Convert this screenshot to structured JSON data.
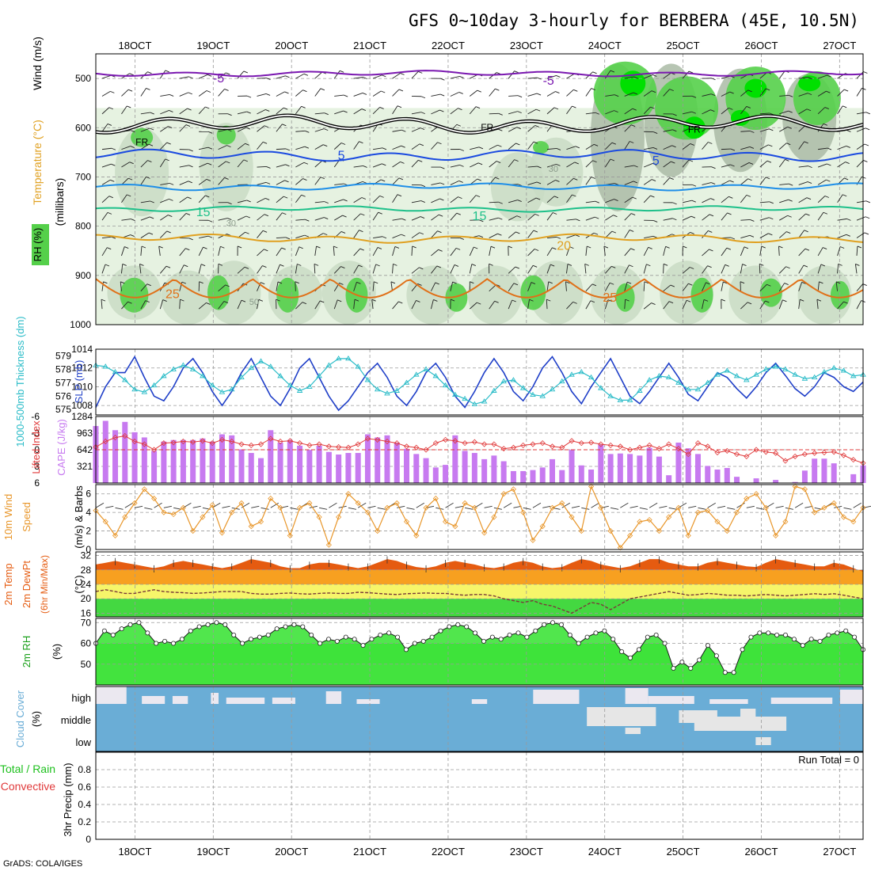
{
  "title": "GFS 0~10day 3-hourly for BERBERA (45E, 10.5N)",
  "credit": "GrADS: COLA/IGES",
  "colors": {
    "rh_light": "#e6f2e1",
    "rh_mid": "#c9dcc4",
    "rh_dark": "#aabba6",
    "rh_green": "#55d04a",
    "rh_bright": "#00e000",
    "cape_bar": "#c77af0",
    "lifted_index": "#e0393a",
    "slp": "#1f3fc8",
    "thickness": "#2bbcc8",
    "wind_speed": "#e8962a",
    "temp_fill": "#e55b10",
    "temp_band": "#f7a020",
    "dewpoint_band": "#f6f56a",
    "dew_green": "#44d841",
    "rh2m_fill": "#3ee33a",
    "cloud": "#6aadd6",
    "cloud_gap": "#ebe8f0",
    "iso_m5": "#7a18b0",
    "iso_5": "#1a4ae0",
    "iso_10": "#1e8ee8",
    "iso_15": "#1ec08a",
    "iso_20": "#e0a020",
    "iso_25": "#e07018"
  },
  "chart_data": [
    {
      "panel": "upper-air",
      "type": "heatmap",
      "ylabel_wind": "Wind (m/s)",
      "ylabel_temp": "Temperature (°C)",
      "ylabel_rh": "RH (%)",
      "ylabel_units": "(millibars)",
      "x_labels": [
        "18OCT",
        "19OCT",
        "20OCT",
        "21OCT",
        "22OCT",
        "23OCT",
        "24OCT",
        "25OCT",
        "26OCT",
        "27OCT"
      ],
      "x_day_start": 17.5,
      "x_day_end": 27.3,
      "y_ticks": [
        500,
        600,
        700,
        800,
        900,
        1000
      ],
      "ylim": [
        450,
        1000
      ],
      "isotherm_labels": [
        "-5",
        "5",
        "15",
        "20",
        "25",
        "FR"
      ],
      "rh_labels": [
        "30",
        "50"
      ],
      "isotherms": [
        {
          "name": "-5",
          "base": 490,
          "amp": 4,
          "color_key": "iso_m5"
        },
        {
          "name": "FR",
          "base": 593,
          "amp": 12,
          "color_key": "iso_fr"
        },
        {
          "name": "5",
          "base": 656,
          "amp": 8,
          "color_key": "iso_5"
        },
        {
          "name": "10",
          "base": 720,
          "amp": 5,
          "color_key": "iso_10"
        },
        {
          "name": "15",
          "base": 765,
          "amp": 4,
          "color_key": "iso_15"
        },
        {
          "name": "20",
          "base": 825,
          "amp": 6,
          "color_key": "iso_20"
        },
        {
          "name": "25",
          "base": 925,
          "amp": 20,
          "color_key": "iso_25"
        }
      ]
    },
    {
      "panel": "slp-thickness",
      "type": "line",
      "ylabel_slp": "SLP (mb)",
      "ylabel_thick": "1000-500mb Thickness (dm)",
      "slp_ticks": [
        1008,
        1010,
        1012,
        1014
      ],
      "thick_ticks": [
        575,
        576,
        577,
        578,
        579
      ],
      "slp_ylim": [
        1007,
        1014
      ],
      "thick_ylim": [
        574.6,
        579.5
      ],
      "series": [
        {
          "name": "SLP",
          "values": [
            1007.8,
            1010,
            1011.5,
            1011.5,
            1013.2,
            1011,
            1009,
            1008.5,
            1010,
            1012,
            1013,
            1011.5,
            1009.5,
            1008,
            1009.5,
            1011.5,
            1013,
            1011,
            1009,
            1008,
            1009.8,
            1012,
            1013,
            1011,
            1009,
            1007.5,
            1008.5,
            1010,
            1011.5,
            1012.5,
            1011,
            1009,
            1008,
            1009.5,
            1011.5,
            1012.5,
            1011,
            1009,
            1007.8,
            1009.5,
            1011.5,
            1013,
            1011.5,
            1009.5,
            1008.5,
            1010,
            1012,
            1013.2,
            1011.5,
            1009.5,
            1008.2,
            1010,
            1011.5,
            1013,
            1011,
            1009,
            1008.2,
            1009.5,
            1011,
            1012.5,
            1011,
            1009.2,
            1008.5,
            1010,
            1011.5,
            1011,
            1009.8,
            1008.8,
            1010,
            1011.5,
            1012.5,
            1011.2,
            1009.8,
            1009,
            1010,
            1011.5,
            1011,
            1010,
            1009.5,
            1010.5
          ]
        },
        {
          "name": "Thickness",
          "values": [
            578.3,
            578.2,
            577.8,
            577.2,
            576.5,
            576.3,
            576.8,
            577.5,
            578,
            578.3,
            578,
            577.5,
            576.8,
            576.3,
            576.5,
            577.4,
            578.1,
            578.6,
            578.2,
            577.5,
            576.8,
            576.4,
            576.7,
            577.5,
            578.3,
            578.8,
            578.8,
            578.2,
            577.2,
            576.5,
            576.2,
            576.4,
            577,
            577.6,
            578,
            577.5,
            576.8,
            576.1,
            575.8,
            575.4,
            575.6,
            576.4,
            577.1,
            577.2,
            576.6,
            576.1,
            576,
            576.5,
            577.1,
            577.6,
            577.8,
            577.4,
            576.6,
            576,
            575.7,
            575.7,
            576.4,
            577.2,
            577.5,
            577.4,
            577,
            576.5,
            576.5,
            577,
            577.6,
            577.9,
            577.5,
            577.2,
            577.6,
            578,
            578.2,
            578,
            577.6,
            577.3,
            577.4,
            577.8,
            578.1,
            577.9,
            577.5,
            577.6
          ]
        }
      ]
    },
    {
      "panel": "cape-lifted-index",
      "type": "bar",
      "ylabel_li": "Lifted Index",
      "ylabel_cape": "CAPE (J/kg)",
      "li_ticks": [
        "-6",
        "-3",
        "0",
        "3",
        "6"
      ],
      "cape_ticks": [
        321,
        642,
        963,
        1284
      ],
      "cape_ylim": [
        0,
        1284
      ],
      "li_ylim": [
        -6,
        6
      ],
      "series": [
        {
          "name": "CAPE",
          "values": [
            1100,
            1200,
            1020,
            1180,
            980,
            880,
            620,
            800,
            830,
            830,
            830,
            860,
            800,
            940,
            920,
            650,
            580,
            480,
            1020,
            780,
            830,
            720,
            640,
            720,
            600,
            550,
            580,
            580,
            940,
            880,
            920,
            780,
            660,
            560,
            480,
            300,
            350,
            920,
            620,
            580,
            460,
            530,
            420,
            230,
            230,
            250,
            300,
            460,
            250,
            640,
            340,
            260,
            740,
            560,
            570,
            560,
            530,
            680,
            510,
            150,
            780,
            670,
            560,
            330,
            260,
            290,
            120,
            0,
            90,
            0,
            60,
            0,
            20,
            240,
            470,
            470,
            380,
            0,
            170,
            340
          ]
        },
        {
          "name": "Lifted Index",
          "values": [
            -0.5,
            -1.5,
            -2.2,
            -2.5,
            -1.5,
            -1,
            0,
            -1.2,
            -1.3,
            -1.5,
            -1.4,
            -1.6,
            -1.2,
            -1.8,
            -1.5,
            -1,
            -0.8,
            -1,
            -2,
            -1.5,
            -1.6,
            -1.2,
            -0.8,
            -1,
            -0.6,
            -0.5,
            -0.4,
            -1,
            -2,
            -1.8,
            -1.5,
            -1.2,
            -0.6,
            -0.4,
            0,
            -1.2,
            -1.8,
            -1.6,
            -1.2,
            -1.4,
            -1,
            -1,
            -0.2,
            -0.4,
            -0.8,
            -1,
            -1.2,
            -0.6,
            -0.4,
            -1.6,
            -1.2,
            -1.3,
            -1,
            -0.8,
            -0.6,
            0,
            -0.4,
            -0.8,
            -0.2,
            -1,
            -0.2,
            0.8,
            -1.2,
            -0.6,
            0.5,
            0.2,
            0.8,
            1.2,
            0,
            0.4,
            0.6,
            2,
            1.2,
            0.8,
            0.6,
            0.5,
            0.4,
            1,
            1.8,
            2.4
          ]
        }
      ]
    },
    {
      "panel": "wind10m",
      "type": "line",
      "ylabel": "10m Wind Speed (m/s) & Barbs",
      "ylabel_part1": "10m Wind",
      "ylabel_part2": "Speed",
      "ylabel_part3": "(m/s) & Barbs",
      "y_ticks": [
        0,
        2,
        4,
        6
      ],
      "ylim": [
        0,
        7
      ],
      "series": [
        {
          "name": "Wind speed",
          "values": [
            4.2,
            3,
            1.5,
            3.5,
            5,
            6.5,
            5.5,
            4,
            3.8,
            4.5,
            2,
            3.5,
            4.8,
            1.8,
            4,
            5,
            2.5,
            3,
            5.5,
            4.5,
            1.5,
            4.5,
            5,
            3.5,
            0.5,
            3.5,
            6,
            5,
            4,
            2,
            4.5,
            5,
            3,
            1.5,
            4.5,
            5.5,
            3,
            2.5,
            5,
            4.5,
            1.8,
            3.5,
            6,
            6.5,
            4,
            1,
            2.5,
            4.5,
            5,
            3.5,
            2,
            6.8,
            4.5,
            2,
            0.2,
            1.5,
            3,
            3.2,
            2,
            3.5,
            4.5,
            1.5,
            4,
            4.2,
            3,
            2,
            4,
            5.5,
            6,
            4.5,
            1.5,
            3,
            6.8,
            6.5,
            4,
            4.5,
            5,
            3.5,
            3,
            4.5
          ]
        }
      ]
    },
    {
      "panel": "temp2m",
      "type": "area",
      "ylabel": "2m Temp 2m DewPt (6hr Min/Max) (°C)",
      "ylabel_part1": "2m Temp",
      "ylabel_part2": "2m DewPt",
      "ylabel_part3": "(6hr Min/Max)",
      "ylabel_part4": "(°C)",
      "y_ticks": [
        16,
        20,
        24,
        28,
        32
      ],
      "ylim": [
        15,
        33
      ],
      "series": [
        {
          "name": "2m Temp",
          "values": [
            29.5,
            30,
            30.5,
            30,
            29.5,
            29,
            28.5,
            29,
            30,
            30.5,
            30,
            29.5,
            29,
            28.5,
            29,
            30,
            31,
            30.5,
            30,
            29,
            28.5,
            28.5,
            29.5,
            30,
            30,
            29.5,
            29,
            28.5,
            29,
            30,
            31,
            30.5,
            29.5,
            28.8,
            28.5,
            29,
            30,
            30.5,
            30,
            29.5,
            28.8,
            28.5,
            29,
            30,
            30.5,
            30,
            29,
            28.5,
            28.8,
            30,
            31,
            30.5,
            29.5,
            29,
            28.5,
            29,
            30,
            31,
            31,
            30,
            29.5,
            29,
            29,
            30,
            30.5,
            30,
            29.5,
            29,
            28.8,
            30,
            31,
            30.5,
            30,
            29.5,
            29,
            29,
            30,
            29.5,
            28.5,
            27.5
          ]
        },
        {
          "name": "2m DewPt",
          "values": [
            22,
            22.5,
            22,
            21.5,
            21.5,
            22,
            22.5,
            22,
            21.8,
            21.7,
            21.5,
            21.6,
            21.8,
            22,
            22,
            22,
            21.5,
            21.3,
            21.3,
            21.5,
            21.6,
            21.4,
            21.3,
            21.5,
            21.6,
            21.5,
            21.5,
            21.8,
            21.7,
            21.5,
            21.3,
            21.2,
            21.4,
            21.5,
            21.6,
            21.5,
            21.5,
            21.2,
            21,
            21.2,
            21.2,
            20.8,
            20,
            19.5,
            19,
            19.5,
            18.5,
            18,
            17,
            16,
            17.5,
            19,
            18.5,
            17,
            18.5,
            20,
            20.5,
            21,
            21.5,
            22,
            21.5,
            21,
            21.2,
            21.5,
            21.3,
            21,
            21,
            20.8,
            21,
            21.2,
            21,
            20.8,
            21,
            21.2,
            21.4,
            21.2,
            21.4,
            21,
            20.5,
            20
          ]
        }
      ]
    },
    {
      "panel": "rh2m",
      "type": "area",
      "ylabel": "2m RH (%)",
      "y_ticks": [
        50,
        60,
        70
      ],
      "ylim": [
        40,
        72
      ],
      "series": [
        {
          "name": "2m RH",
          "values": [
            60,
            66,
            64,
            67,
            69,
            70,
            65,
            60,
            61,
            60,
            62,
            66,
            68,
            69,
            70,
            69,
            64,
            60,
            62,
            63,
            64,
            67,
            68,
            69,
            68,
            64,
            60,
            62,
            61,
            63,
            62,
            59,
            62,
            64,
            65,
            63,
            57,
            60,
            61,
            63,
            66,
            68,
            69,
            68,
            65,
            61,
            63,
            62,
            64,
            65,
            63,
            66,
            69,
            70,
            69,
            64,
            60,
            63,
            65,
            66,
            62,
            56,
            53,
            57,
            63,
            64,
            60,
            48,
            51,
            48,
            52,
            59,
            54,
            46,
            46,
            57,
            63,
            65,
            65,
            64,
            64,
            62,
            59,
            62,
            61,
            64,
            65,
            66,
            63,
            57
          ]
        }
      ]
    },
    {
      "panel": "cloud-cover",
      "type": "area",
      "ylabel": "Cloud Cover (%)",
      "ylabel_part1": "Cloud Cover",
      "ylabel_part2": "(%)",
      "levels": [
        "high",
        "middle",
        "low"
      ]
    },
    {
      "panel": "precip",
      "type": "bar",
      "ylabel_total": "Total / Rain",
      "ylabel_conv": "Convective",
      "ylabel_axis": "3hr Precip (mm)",
      "run_total": "Run Total = 0",
      "y_ticks": [
        "0",
        "0.2",
        "0.4",
        "0.6",
        "0.8"
      ],
      "ylim": [
        0,
        1
      ],
      "values": []
    }
  ]
}
